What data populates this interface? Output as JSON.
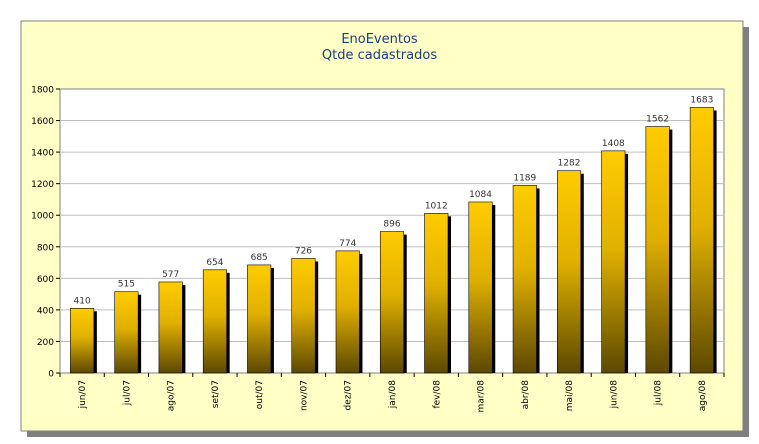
{
  "chart_data": {
    "type": "bar",
    "title": "EnoEventos",
    "subtitle": "Qtde cadastrados",
    "xlabel": "",
    "ylabel": "",
    "categories": [
      "jun/07",
      "jul/07",
      "ago/07",
      "set/07",
      "out/07",
      "nov/07",
      "dez/07",
      "jan/08",
      "fev/08",
      "mar/08",
      "abr/08",
      "mai/08",
      "jun/08",
      "jul/08",
      "ago/08"
    ],
    "values": [
      410,
      515,
      577,
      654,
      685,
      726,
      774,
      896,
      1012,
      1084,
      1189,
      1282,
      1408,
      1562,
      1683
    ],
    "ylim": [
      0,
      1800
    ],
    "yticks": [
      0,
      200,
      400,
      600,
      800,
      1000,
      1200,
      1400,
      1600,
      1800
    ],
    "grid": true,
    "legend": "none",
    "data_labels": true
  },
  "colors": {
    "background": "#ffffc6",
    "plot_area": "#ffffff",
    "bar_top": "#ffcc00",
    "bar_bottom": "#5c4800",
    "bar_shadow": "#000000",
    "gridline": "#bfbfbf",
    "title": "#1a3f7a",
    "text": "#000000",
    "data_label": "#333333"
  }
}
